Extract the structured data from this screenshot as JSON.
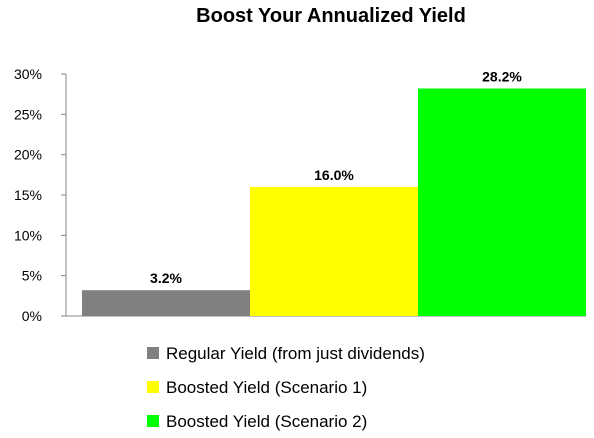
{
  "chart_data": {
    "type": "bar",
    "title": "Boost Your Annualized Yield",
    "xlabel": "",
    "ylabel": "",
    "ylim": [
      0,
      30
    ],
    "yticks": [
      "0%",
      "5%",
      "10%",
      "15%",
      "20%",
      "25%",
      "30%"
    ],
    "grid": false,
    "legend_position": "bottom",
    "series": [
      {
        "name": "Regular Yield (from just dividends)",
        "value": 3.2,
        "label": "3.2%",
        "color": "#808080"
      },
      {
        "name": "Boosted Yield (Scenario 1)",
        "value": 16.0,
        "label": "16.0%",
        "color": "#FFFF00"
      },
      {
        "name": "Boosted Yield (Scenario 2)",
        "value": 28.2,
        "label": "28.2%",
        "color": "#00FF00"
      }
    ]
  }
}
